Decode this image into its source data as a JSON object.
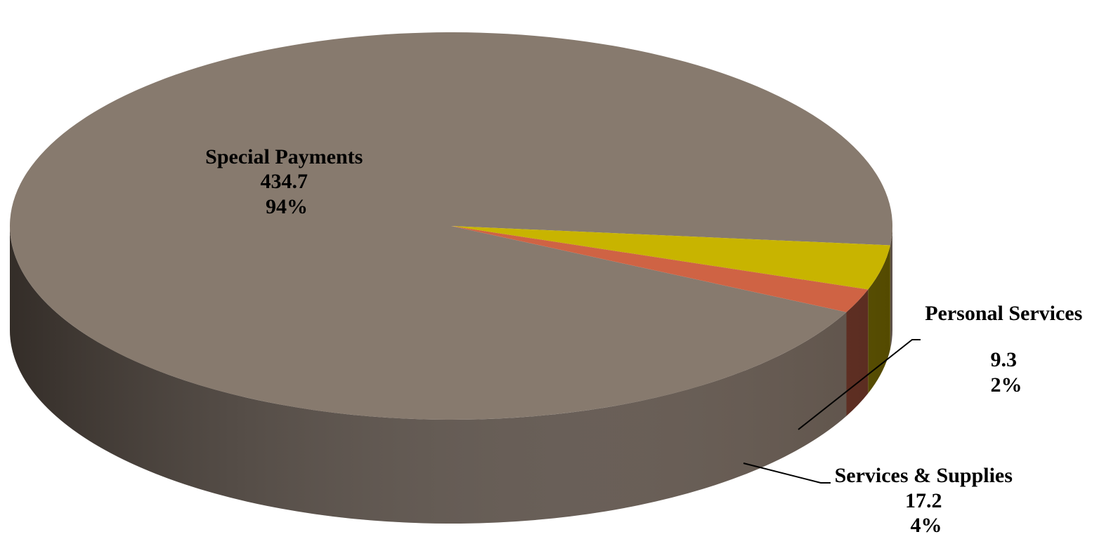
{
  "chart_data": {
    "type": "pie",
    "style": "3d",
    "title": "",
    "slices": [
      {
        "label": "Special Payments",
        "value": 434.7,
        "value_text": "434.7",
        "percent_text": "94%",
        "color": "#877A6E",
        "side_color": "#5E5249"
      },
      {
        "label": "Services & Supplies",
        "value": 17.2,
        "value_text": "17.2",
        "percent_text": "4%",
        "color": "#C8B400",
        "side_color": "#544A00"
      },
      {
        "label": "Personal Services",
        "value": 9.3,
        "value_text": "9.3",
        "percent_text": "2%",
        "color": "#CF6344",
        "side_color": "#5A2A1E"
      }
    ]
  }
}
